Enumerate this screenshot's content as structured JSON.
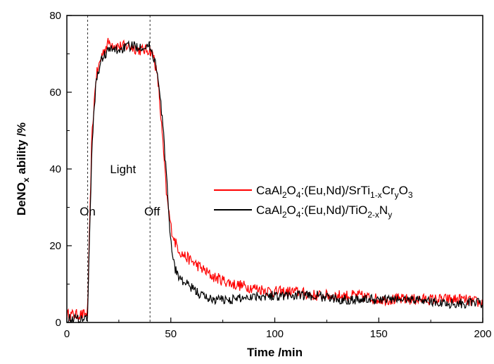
{
  "chart_data": {
    "type": "line",
    "xlabel": "Time /min",
    "ylabel_parts": [
      "DeNO",
      "x",
      " ability /%"
    ],
    "xlim": [
      0,
      200
    ],
    "ylim": [
      0,
      80
    ],
    "xticks": [
      0,
      50,
      100,
      150,
      200
    ],
    "yticks": [
      0,
      20,
      40,
      60,
      80
    ],
    "grid": false,
    "legend_position": "center-right",
    "vlines": [
      10,
      40
    ],
    "annotations": [
      {
        "text": "On",
        "x": 10,
        "y": 29
      },
      {
        "text": "Light",
        "x": 27,
        "y": 40
      },
      {
        "text": "Off",
        "x": 41,
        "y": 29
      }
    ],
    "series": [
      {
        "name_parts": [
          {
            "t": "CaAl",
            "s": "n"
          },
          {
            "t": "2",
            "s": "sub"
          },
          {
            "t": "O",
            "s": "n"
          },
          {
            "t": "4",
            "s": "sub"
          },
          {
            "t": ":(Eu,Nd)/SrTi",
            "s": "n"
          },
          {
            "t": "1-x",
            "s": "sub"
          },
          {
            "t": "Cr",
            "s": "n"
          },
          {
            "t": "y",
            "s": "sub"
          },
          {
            "t": "O",
            "s": "n"
          },
          {
            "t": "3",
            "s": "sub"
          }
        ],
        "color": "#ff0000",
        "x": [
          0,
          9,
          10,
          12,
          14,
          17,
          20,
          25,
          30,
          35,
          40,
          42,
          44,
          46,
          48,
          50,
          52,
          55,
          60,
          65,
          70,
          75,
          80,
          90,
          100,
          110,
          120,
          130,
          140,
          150,
          160,
          170,
          180,
          190,
          200
        ],
        "y": [
          2,
          2,
          3,
          48,
          64,
          70,
          73,
          72,
          72,
          71,
          71,
          69,
          62,
          48,
          33,
          25,
          21,
          18,
          16,
          14,
          12,
          11,
          10,
          9,
          8,
          8,
          7,
          7,
          7,
          6,
          6,
          6,
          6,
          6,
          5
        ],
        "noise": 1.5
      },
      {
        "name_parts": [
          {
            "t": "CaAl",
            "s": "n"
          },
          {
            "t": "2",
            "s": "sub"
          },
          {
            "t": "O",
            "s": "n"
          },
          {
            "t": "4",
            "s": "sub"
          },
          {
            "t": ":(Eu,Nd)/TiO",
            "s": "n"
          },
          {
            "t": "2-x",
            "s": "sub"
          },
          {
            "t": "N",
            "s": "n"
          },
          {
            "t": "y",
            "s": "sub"
          }
        ],
        "color": "#000000",
        "x": [
          0,
          9,
          10,
          12,
          14,
          17,
          20,
          25,
          30,
          35,
          38,
          40,
          43,
          46,
          48,
          50,
          52,
          55,
          60,
          65,
          70,
          75,
          80,
          90,
          100,
          110,
          120,
          130,
          140,
          150,
          160,
          170,
          180,
          190,
          200
        ],
        "y": [
          1,
          1,
          2,
          45,
          63,
          69,
          71,
          71,
          72,
          72,
          72,
          72,
          67,
          53,
          37,
          21,
          14,
          11,
          9,
          7,
          6,
          6,
          6,
          7,
          7,
          7,
          7,
          6,
          6,
          6,
          6,
          6,
          5,
          5,
          5
        ],
        "noise": 1.3
      }
    ]
  }
}
